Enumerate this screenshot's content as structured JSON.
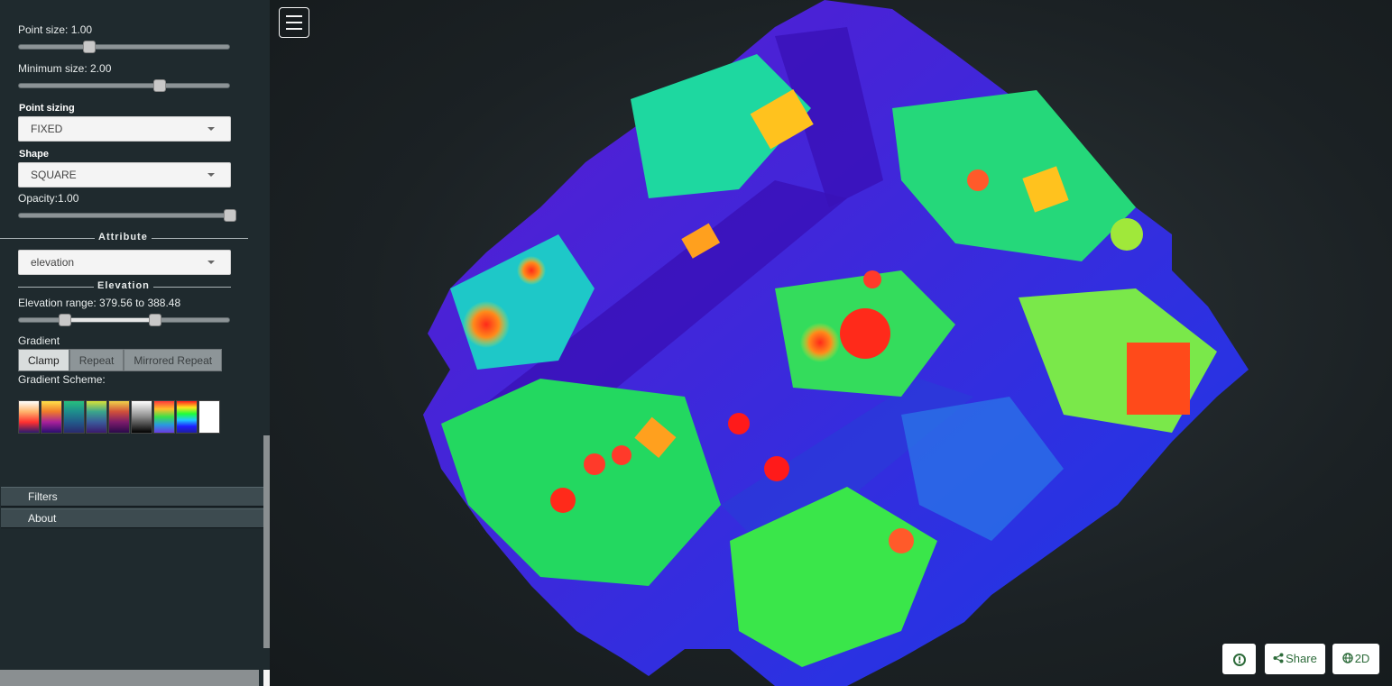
{
  "sidebar": {
    "point_size_label": "Point size: 1.00",
    "point_size_value": 0.33,
    "min_size_label": "Minimum size: 2.00",
    "min_size_value": 0.67,
    "point_sizing_label": "Point sizing",
    "point_sizing_value": "FIXED",
    "shape_label": "Shape",
    "shape_value": "SQUARE",
    "opacity_label": "Opacity:1.00",
    "opacity_value": 1.0,
    "attribute_title": "Attribute",
    "attribute_value": "elevation",
    "elevation_title": "Elevation",
    "elevation_range_label": "Elevation range: 379.56 to 388.48",
    "gradient_label": "Gradient",
    "gradient_buttons": [
      "Clamp",
      "Repeat",
      "Mirrored Repeat"
    ],
    "gradient_active": "Clamp",
    "gradient_scheme_label": "Gradient Scheme:",
    "menu": [
      "Filters",
      "About"
    ]
  },
  "viewer": {
    "buttons": {
      "info_icon": "info-circle-icon",
      "share_label": "Share",
      "share_icon": "share-icon",
      "view_label": "2D",
      "view_icon": "globe-icon"
    },
    "colors": {
      "button_text": "#2d6b3a"
    }
  }
}
